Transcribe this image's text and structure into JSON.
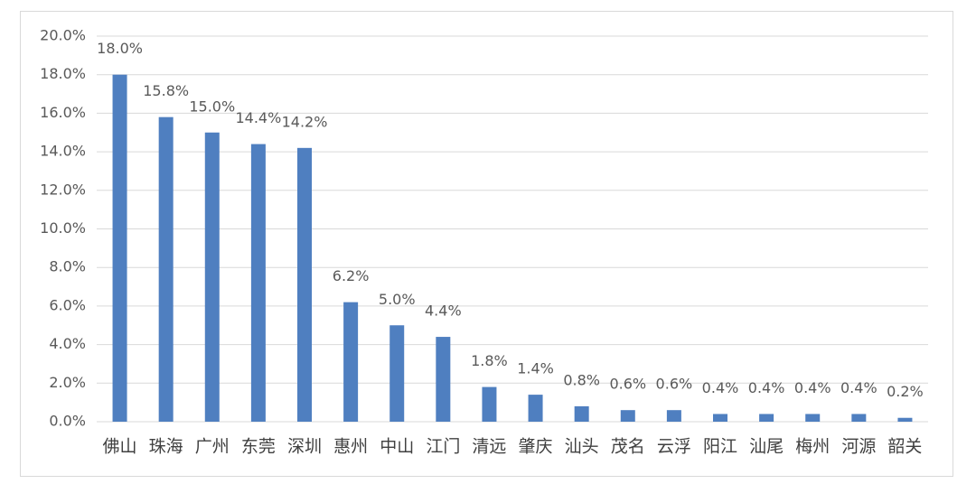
{
  "chart_data": {
    "type": "bar",
    "categories": [
      "佛山",
      "珠海",
      "广州",
      "东莞",
      "深圳",
      "惠州",
      "中山",
      "江门",
      "清远",
      "肇庆",
      "汕头",
      "茂名",
      "云浮",
      "阳江",
      "汕尾",
      "梅州",
      "河源",
      "韶关"
    ],
    "values": [
      18.0,
      15.8,
      15.0,
      14.4,
      14.2,
      6.2,
      5.0,
      4.4,
      1.8,
      1.4,
      0.8,
      0.6,
      0.6,
      0.4,
      0.4,
      0.4,
      0.4,
      0.2
    ],
    "value_labels": [
      "18.0%",
      "15.8%",
      "15.0%",
      "14.4%",
      "14.2%",
      "6.2%",
      "5.0%",
      "4.4%",
      "1.8%",
      "1.4%",
      "0.8%",
      "0.6%",
      "0.6%",
      "0.4%",
      "0.4%",
      "0.4%",
      "0.4%",
      "0.2%"
    ],
    "color": "#4f7fc0",
    "ylim": [
      0,
      20
    ],
    "yticks": [
      {
        "value": 0,
        "label": "0.0%"
      },
      {
        "value": 2,
        "label": "2.0%"
      },
      {
        "value": 4,
        "label": "4.0%"
      },
      {
        "value": 6,
        "label": "6.0%"
      },
      {
        "value": 8,
        "label": "8.0%"
      },
      {
        "value": 10,
        "label": "10.0%"
      },
      {
        "value": 12,
        "label": "12.0%"
      },
      {
        "value": 14,
        "label": "14.0%"
      },
      {
        "value": 16,
        "label": "16.0%"
      },
      {
        "value": 18,
        "label": "18.0%"
      },
      {
        "value": 20,
        "label": "20.0%"
      }
    ],
    "grid": true
  }
}
